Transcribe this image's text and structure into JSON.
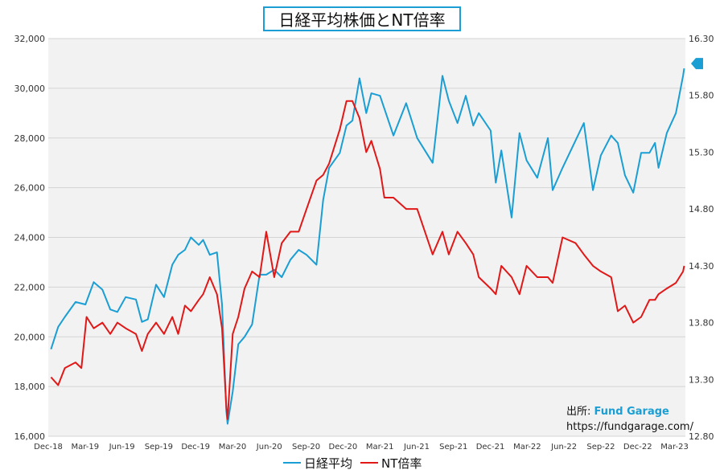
{
  "chart_data": {
    "type": "line",
    "title": "日経平均株価とNT倍率",
    "x_ticks": [
      "Dec-18",
      "Mar-19",
      "Jun-19",
      "Sep-19",
      "Dec-19",
      "Mar-20",
      "Jun-20",
      "Sep-20",
      "Dec-20",
      "Mar-21",
      "Jun-21",
      "Sep-21",
      "Dec-21",
      "Mar-22",
      "Jun-22",
      "Sep-22",
      "Dec-22",
      "Mar-23"
    ],
    "y_left": {
      "min": 16000,
      "max": 32000,
      "ticks": [
        "16,000",
        "18,000",
        "20,000",
        "22,000",
        "24,000",
        "26,000",
        "28,000",
        "30,000",
        "32,000"
      ]
    },
    "y_right": {
      "min": 12.8,
      "max": 16.3,
      "ticks": [
        "12.80",
        "13.30",
        "13.80",
        "14.30",
        "14.80",
        "15.30",
        "15.80",
        "16.30"
      ]
    },
    "grid": "horizontal",
    "legend_position": "bottom",
    "series": [
      {
        "name": "日経平均",
        "axis": "left",
        "color": "#1a9ed3",
        "x": [
          "2018-12-28",
          "2019-01-15",
          "2019-02-01",
          "2019-02-28",
          "2019-03-25",
          "2019-04-15",
          "2019-05-07",
          "2019-05-27",
          "2019-06-14",
          "2019-07-05",
          "2019-07-31",
          "2019-08-15",
          "2019-08-30",
          "2019-09-20",
          "2019-10-10",
          "2019-10-31",
          "2019-11-15",
          "2019-12-02",
          "2019-12-17",
          "2020-01-06",
          "2020-01-17",
          "2020-02-03",
          "2020-02-21",
          "2020-03-05",
          "2020-03-16",
          "2020-03-19",
          "2020-04-01",
          "2020-04-15",
          "2020-05-01",
          "2020-05-20",
          "2020-06-08",
          "2020-06-25",
          "2020-07-15",
          "2020-08-03",
          "2020-08-25",
          "2020-09-15",
          "2020-10-05",
          "2020-10-30",
          "2020-11-16",
          "2020-12-01",
          "2020-12-28",
          "2021-01-14",
          "2021-01-29",
          "2021-02-16",
          "2021-03-05",
          "2021-03-18",
          "2021-04-09",
          "2021-05-13",
          "2021-06-14",
          "2021-07-12",
          "2021-08-20",
          "2021-09-14",
          "2021-09-30",
          "2021-10-22",
          "2021-11-12",
          "2021-12-01",
          "2021-12-15",
          "2022-01-14",
          "2022-01-27",
          "2022-02-10",
          "2022-03-08",
          "2022-03-28",
          "2022-04-15",
          "2022-05-12",
          "2022-06-08",
          "2022-06-20",
          "2022-07-15",
          "2022-08-17",
          "2022-09-07",
          "2022-09-30",
          "2022-10-20",
          "2022-11-15",
          "2022-12-02",
          "2022-12-20",
          "2023-01-10",
          "2023-01-30",
          "2023-02-20",
          "2023-03-06",
          "2023-03-15",
          "2023-04-05",
          "2023-04-28",
          "2023-05-16",
          "2023-05-19"
        ],
        "values": [
          19500,
          20400,
          20800,
          21400,
          21300,
          22200,
          21900,
          21100,
          21000,
          21600,
          21500,
          20600,
          20700,
          22100,
          21600,
          22900,
          23300,
          23500,
          24000,
          23700,
          23900,
          23300,
          23400,
          21300,
          17000,
          16500,
          17800,
          19700,
          20000,
          20500,
          22500,
          22500,
          22700,
          22400,
          23100,
          23500,
          23300,
          22900,
          25500,
          26800,
          27400,
          28500,
          28700,
          30400,
          29000,
          29800,
          29700,
          28100,
          29400,
          28000,
          27000,
          30500,
          29500,
          28600,
          29700,
          28500,
          29000,
          28300,
          26200,
          27500,
          24800,
          28200,
          27100,
          26400,
          28000,
          25900,
          26800,
          27900,
          28600,
          25900,
          27300,
          28100,
          27800,
          26500,
          25800,
          27400,
          27400,
          27800,
          26800,
          28200,
          29000,
          30500,
          30800
        ]
      },
      {
        "name": "NT倍率",
        "axis": "right",
        "color": "#e01818",
        "x": [
          "2018-12-28",
          "2019-01-15",
          "2019-02-01",
          "2019-02-28",
          "2019-03-15",
          "2019-03-28",
          "2019-04-15",
          "2019-05-07",
          "2019-05-27",
          "2019-06-14",
          "2019-07-05",
          "2019-07-31",
          "2019-08-15",
          "2019-08-30",
          "2019-09-20",
          "2019-10-10",
          "2019-10-31",
          "2019-11-15",
          "2019-12-02",
          "2019-12-17",
          "2020-01-06",
          "2020-01-17",
          "2020-02-03",
          "2020-02-21",
          "2020-03-05",
          "2020-03-16",
          "2020-03-19",
          "2020-04-01",
          "2020-04-15",
          "2020-05-01",
          "2020-05-20",
          "2020-06-08",
          "2020-06-25",
          "2020-07-15",
          "2020-08-03",
          "2020-08-25",
          "2020-09-15",
          "2020-10-05",
          "2020-10-30",
          "2020-11-16",
          "2020-12-01",
          "2020-12-28",
          "2021-01-14",
          "2021-01-29",
          "2021-02-16",
          "2021-03-05",
          "2021-03-18",
          "2021-04-09",
          "2021-04-20",
          "2021-05-13",
          "2021-06-14",
          "2021-07-12",
          "2021-08-20",
          "2021-09-14",
          "2021-09-30",
          "2021-10-22",
          "2021-11-12",
          "2021-12-01",
          "2021-12-15",
          "2022-01-14",
          "2022-01-27",
          "2022-02-10",
          "2022-03-08",
          "2022-03-28",
          "2022-04-15",
          "2022-05-12",
          "2022-06-08",
          "2022-06-20",
          "2022-07-15",
          "2022-08-17",
          "2022-09-07",
          "2022-09-30",
          "2022-10-20",
          "2022-11-15",
          "2022-12-02",
          "2022-12-20",
          "2023-01-10",
          "2023-01-30",
          "2023-02-20",
          "2023-03-06",
          "2023-03-15",
          "2023-04-05",
          "2023-04-28",
          "2023-05-16",
          "2023-05-19"
        ],
        "values": [
          13.32,
          13.25,
          13.4,
          13.45,
          13.4,
          13.85,
          13.75,
          13.8,
          13.7,
          13.8,
          13.75,
          13.7,
          13.55,
          13.7,
          13.8,
          13.7,
          13.85,
          13.7,
          13.95,
          13.9,
          14.0,
          14.05,
          14.2,
          14.05,
          13.75,
          13.05,
          12.95,
          13.7,
          13.85,
          14.1,
          14.25,
          14.2,
          14.6,
          14.2,
          14.5,
          14.6,
          14.6,
          14.8,
          15.05,
          15.1,
          15.2,
          15.5,
          15.75,
          15.75,
          15.6,
          15.3,
          15.4,
          15.15,
          14.9,
          14.9,
          14.8,
          14.8,
          14.4,
          14.6,
          14.4,
          14.6,
          14.5,
          14.4,
          14.2,
          14.1,
          14.05,
          14.3,
          14.2,
          14.05,
          14.3,
          14.2,
          14.2,
          14.15,
          14.55,
          14.5,
          14.4,
          14.3,
          14.25,
          14.2,
          13.9,
          13.95,
          13.8,
          13.85,
          14.0,
          14.0,
          14.05,
          14.1,
          14.15,
          14.25,
          14.3
        ]
      }
    ]
  },
  "source": {
    "label": "出所: ",
    "brand": "Fund Garage",
    "url": "https://fundgarage.com/"
  }
}
